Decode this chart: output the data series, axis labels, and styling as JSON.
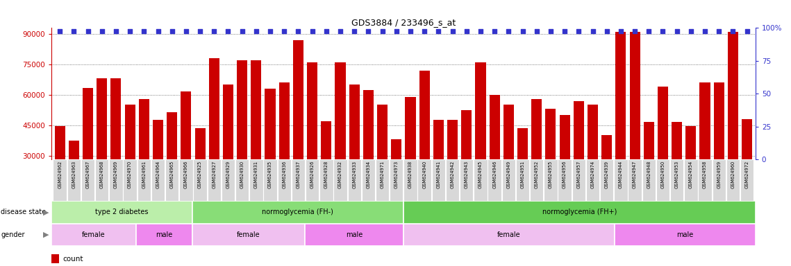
{
  "title": "GDS3884 / 233496_s_at",
  "samples": [
    "GSM624962",
    "GSM624963",
    "GSM624967",
    "GSM624968",
    "GSM624969",
    "GSM624970",
    "GSM624961",
    "GSM624964",
    "GSM624965",
    "GSM624966",
    "GSM624925",
    "GSM624927",
    "GSM624929",
    "GSM624930",
    "GSM624931",
    "GSM624935",
    "GSM624936",
    "GSM624937",
    "GSM624926",
    "GSM624928",
    "GSM624932",
    "GSM624933",
    "GSM624934",
    "GSM624971",
    "GSM624973",
    "GSM624938",
    "GSM624940",
    "GSM624941",
    "GSM624942",
    "GSM624943",
    "GSM624945",
    "GSM624946",
    "GSM624949",
    "GSM624951",
    "GSM624952",
    "GSM624955",
    "GSM624956",
    "GSM624957",
    "GSM624974",
    "GSM624939",
    "GSM624944",
    "GSM624947",
    "GSM624948",
    "GSM624950",
    "GSM624953",
    "GSM624954",
    "GSM624958",
    "GSM624959",
    "GSM624960",
    "GSM624972"
  ],
  "values": [
    44500,
    37500,
    63500,
    68000,
    68000,
    55000,
    58000,
    47500,
    51500,
    61500,
    43500,
    78000,
    65000,
    77000,
    77000,
    63000,
    66000,
    87000,
    76000,
    47000,
    76000,
    65000,
    62500,
    55000,
    38000,
    59000,
    72000,
    47500,
    47500,
    52500,
    76000,
    60000,
    55000,
    43500,
    58000,
    53000,
    50000,
    57000,
    55000,
    40000,
    91000,
    91000,
    46500,
    64000,
    46500,
    44500,
    66000,
    66000,
    91000,
    48000
  ],
  "bar_color": "#cc0000",
  "percentile_color": "#3333cc",
  "ylim_left": [
    28000,
    93000
  ],
  "yticks_left": [
    30000,
    45000,
    60000,
    75000,
    90000
  ],
  "ylim_right": [
    0,
    100
  ],
  "yticks_right": [
    0,
    25,
    50,
    75,
    100
  ],
  "disease_state_groups": [
    {
      "label": "type 2 diabetes",
      "start": 0,
      "end": 10,
      "color": "#bbeeaa"
    },
    {
      "label": "normoglycemia (FH-)",
      "start": 10,
      "end": 25,
      "color": "#88dd77"
    },
    {
      "label": "normoglycemia (FH+)",
      "start": 25,
      "end": 50,
      "color": "#66cc55"
    }
  ],
  "gender_groups": [
    {
      "label": "female",
      "start": 0,
      "end": 6,
      "color": "#f0c0f0"
    },
    {
      "label": "male",
      "start": 6,
      "end": 10,
      "color": "#ee88ee"
    },
    {
      "label": "female",
      "start": 10,
      "end": 18,
      "color": "#f0c0f0"
    },
    {
      "label": "male",
      "start": 18,
      "end": 25,
      "color": "#ee88ee"
    },
    {
      "label": "female",
      "start": 25,
      "end": 40,
      "color": "#f0c0f0"
    },
    {
      "label": "male",
      "start": 40,
      "end": 50,
      "color": "#ee88ee"
    }
  ],
  "background_color": "#ffffff",
  "grid_color": "#555555",
  "label_color_left": "#cc0000",
  "label_color_right": "#3333cc"
}
